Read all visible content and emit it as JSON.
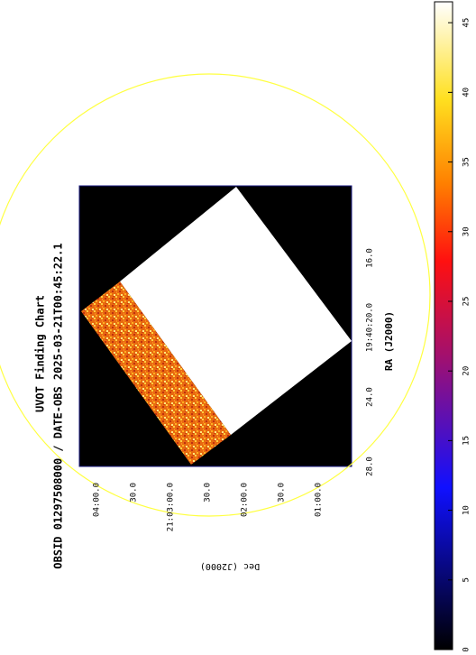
{
  "chart_data": {
    "type": "image",
    "title": "UVOT Finding Chart",
    "subtitle": "OBSID 01297508000 / DATE-OBS 2025-03-21T00:45:22.1",
    "xlabel": "RA (J2000)",
    "ylabel": "Dec (J2000)",
    "ra_ticks": [
      "28.0",
      "24.0",
      "19:40:20.0",
      "16.0"
    ],
    "dec_ticks": [
      "04:00.0",
      "30.0",
      "21:03:00.0",
      "30.0",
      "02:00.0",
      "30.0",
      "01:00.0"
    ],
    "clim": [
      0,
      46.5
    ],
    "cticks": [
      0,
      5,
      10,
      15,
      20,
      25,
      30,
      35,
      40,
      45
    ],
    "circle_color": "#ffff40"
  }
}
